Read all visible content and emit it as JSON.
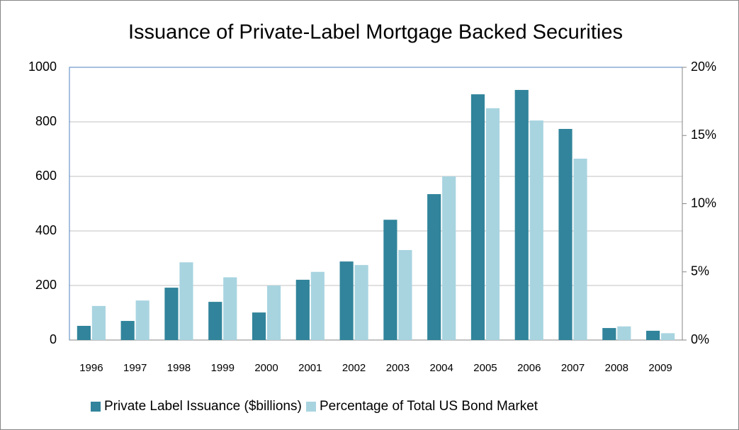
{
  "chart_data": {
    "type": "bar",
    "title": "Issuance of Private-Label Mortgage Backed Securities",
    "categories": [
      "1996",
      "1997",
      "1998",
      "1999",
      "2000",
      "2001",
      "2002",
      "2003",
      "2004",
      "2005",
      "2006",
      "2007",
      "2008",
      "2009"
    ],
    "series": [
      {
        "name": "Private Label Issuance ($billions)",
        "color": "#31849b",
        "values": [
          52,
          70,
          192,
          140,
          101,
          221,
          288,
          441,
          535,
          901,
          917,
          774,
          44,
          34
        ]
      },
      {
        "name": "Percentage of Total US Bond Market",
        "color": "#a8d4e0",
        "axis": "y2",
        "values": [
          2.5,
          2.9,
          5.7,
          4.6,
          4.0,
          5.0,
          5.5,
          6.6,
          12.0,
          17.0,
          16.1,
          13.3,
          1.0,
          0.5
        ]
      }
    ],
    "ylim": [
      0,
      1000
    ],
    "yticks": [
      0,
      200,
      400,
      600,
      800,
      1000
    ],
    "y2lim": [
      0,
      20
    ],
    "y2ticks": [
      {
        "value": 0,
        "label": "0%"
      },
      {
        "value": 5,
        "label": "5%"
      },
      {
        "value": 10,
        "label": "10%"
      },
      {
        "value": 15,
        "label": "15%"
      },
      {
        "value": 20,
        "label": "20%"
      }
    ],
    "grid": true,
    "legend": "bottom"
  }
}
